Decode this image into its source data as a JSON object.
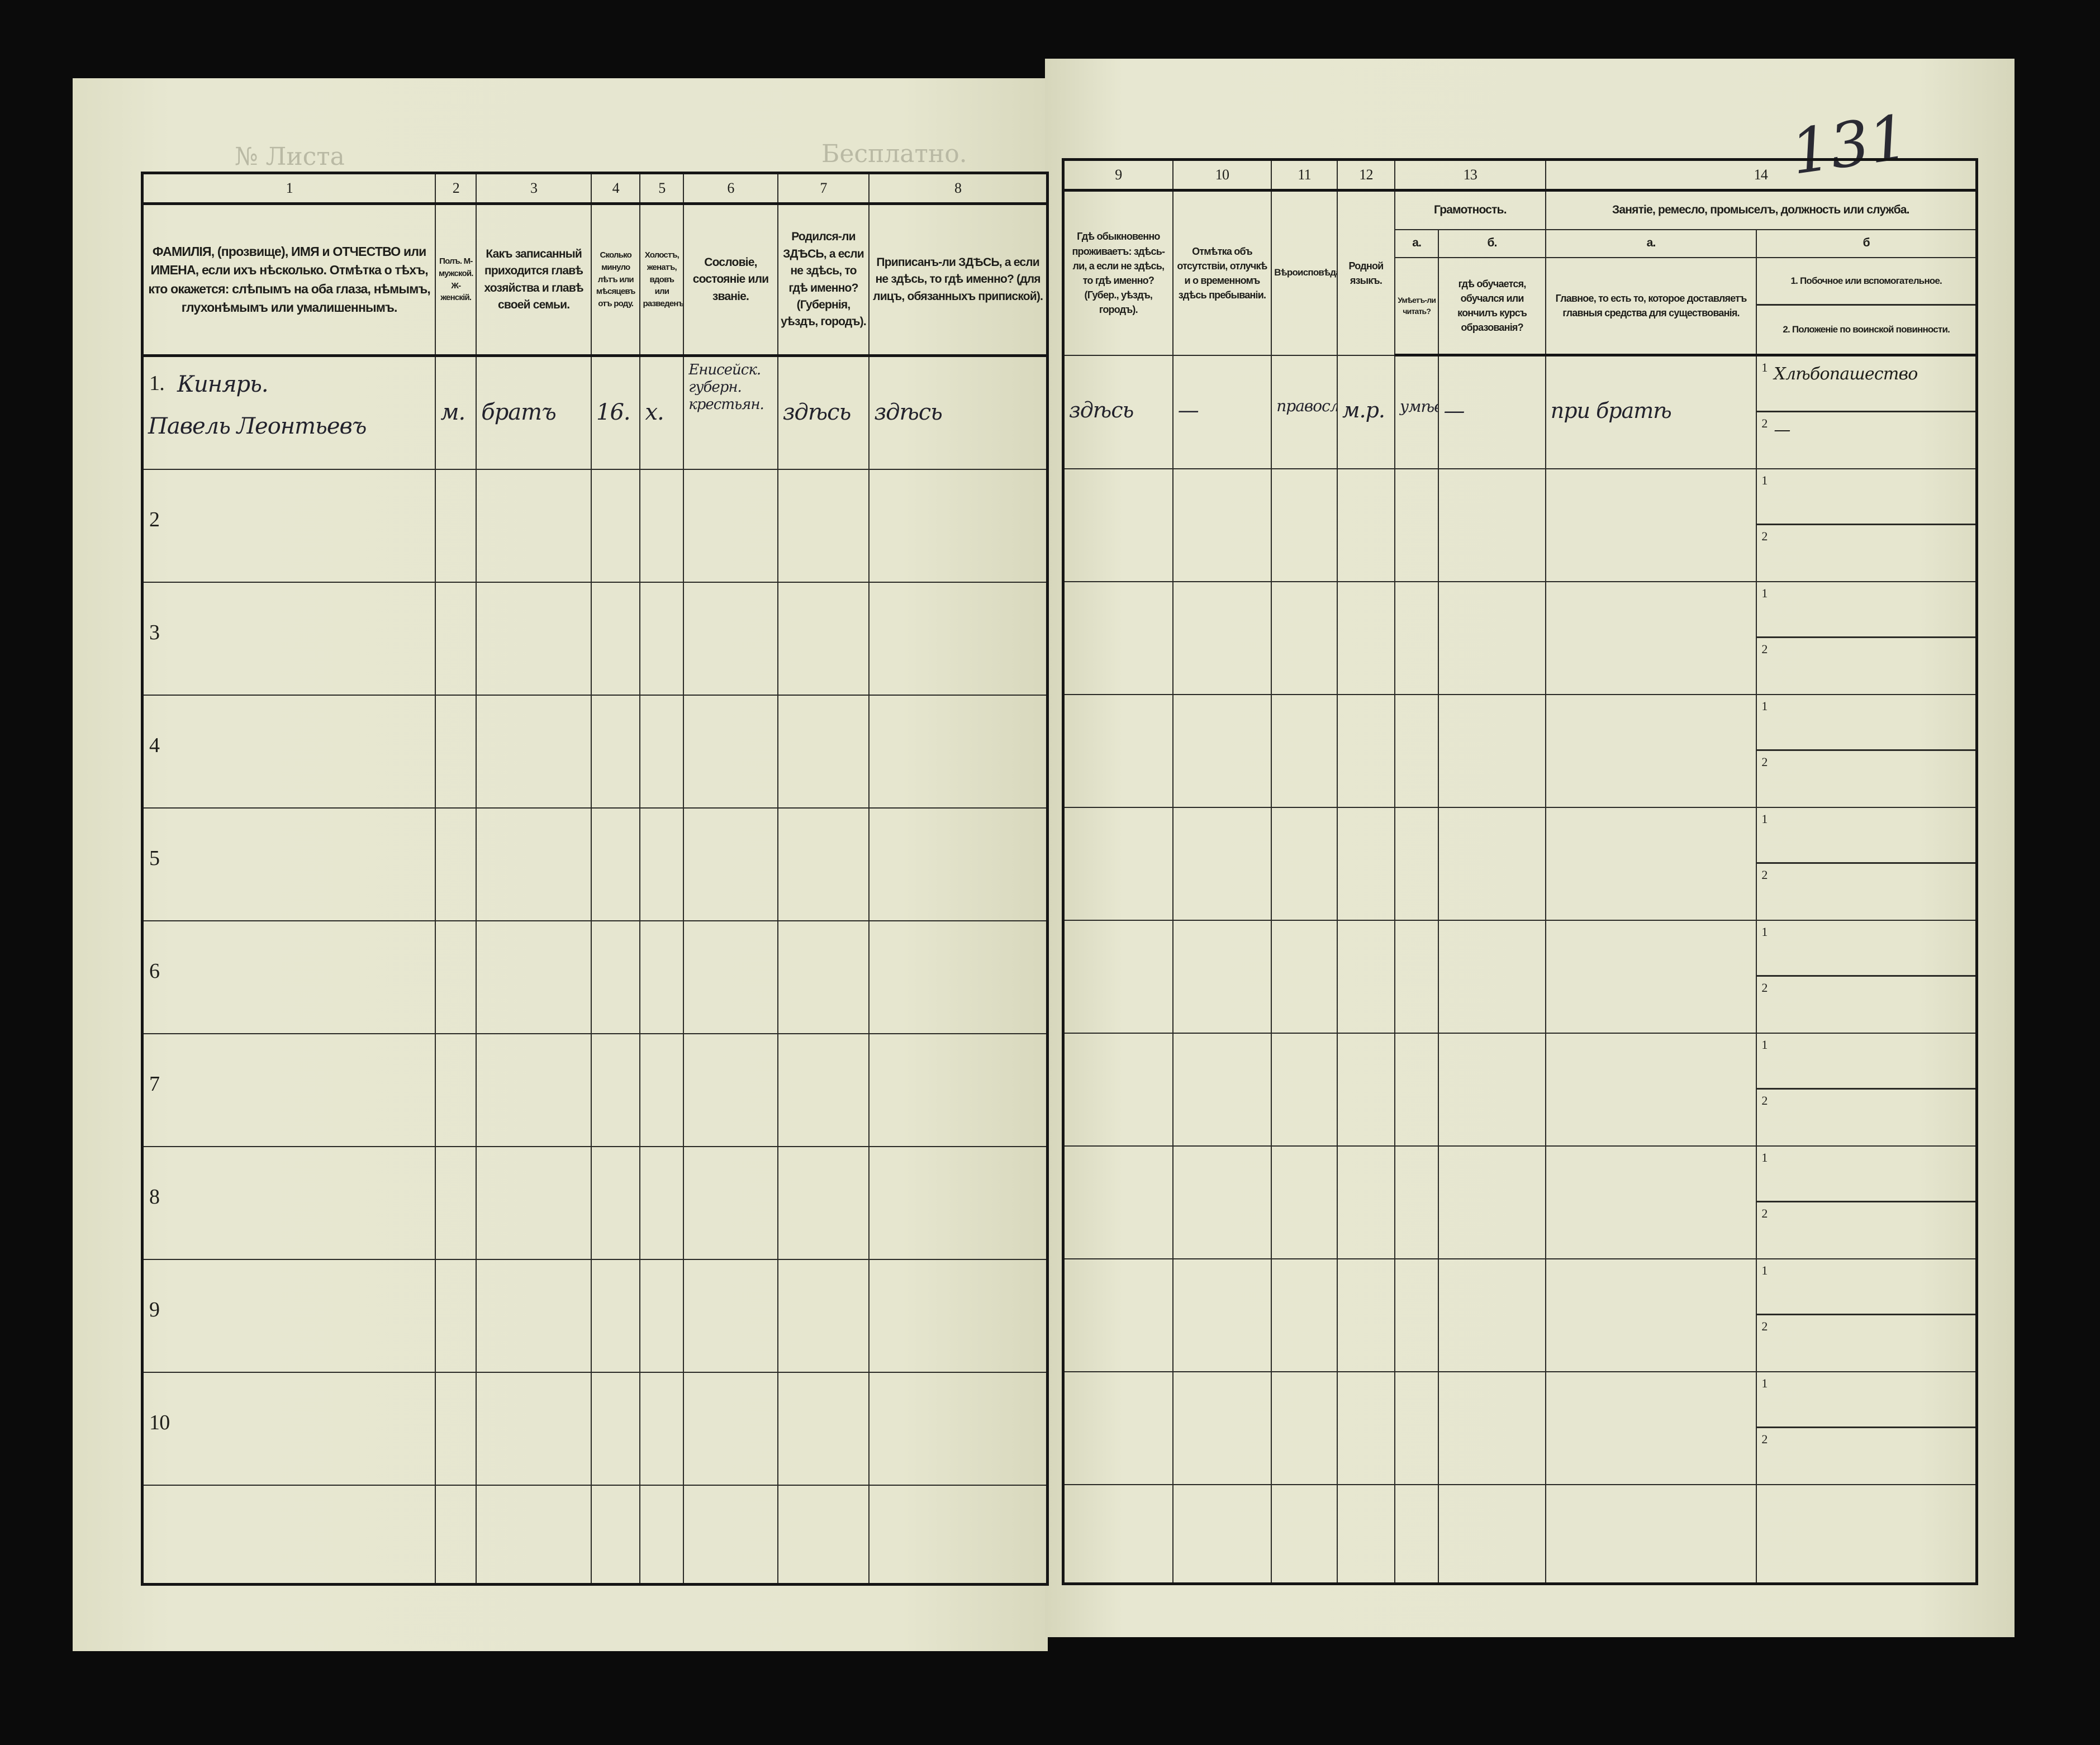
{
  "stamps": {
    "left_top": "Бесплатно.",
    "sheet_no": "№ Листа"
  },
  "page_number": "131",
  "left": {
    "column_numbers": [
      "1",
      "2",
      "3",
      "4",
      "5",
      "6",
      "7",
      "8"
    ],
    "headers": [
      "ФАМИЛІЯ, (прозвище), ИМЯ и ОТЧЕСТВО или ИМЕНА, если ихъ нѣсколько. Отмѣтка о тѣхъ, кто окажется: слѣпымъ на оба глаза, нѣмымъ, глухонѣмымъ или умалишеннымъ.",
      "Полъ. М-мужской. Ж-женскій.",
      "Какъ записанный приходится главѣ хозяйства и главѣ своей семьи.",
      "Сколько минуло лѣтъ или мѣсяцевъ отъ роду.",
      "Холостъ, женатъ, вдовъ или разведенъ.",
      "Сословіе, состояніе или званіе.",
      "Родился-ли ЗДѢСЬ, а если не здѣсь, то гдѣ именно? (Губернія, уѣздъ, городъ).",
      "Приписанъ-ли ЗДѢСЬ, а если не здѣсь, то гдѣ именно? (для лицъ, обязанныхъ припиской)."
    ],
    "row_numbers": [
      "1.",
      "2",
      "3",
      "4",
      "5",
      "6",
      "7",
      "8",
      "9",
      "10"
    ],
    "entry": {
      "surname": "Кинярь.",
      "given_names": "Павель Леонтьевъ",
      "sex": "м.",
      "relation": "братъ",
      "age": "16.",
      "marital": "х.",
      "estate": "Енисейск. губерн. крестьян.",
      "born": "здѣсь",
      "registered": "здѣсь"
    }
  },
  "right": {
    "column_numbers": [
      "9",
      "10",
      "11",
      "12",
      "13",
      "14"
    ],
    "headers": {
      "c9": "Гдѣ обыкновенно проживаетъ: здѣсь-ли, а если не здѣсь, то гдѣ именно? (Губер., уѣздъ, городъ).",
      "c10": "Отмѣтка объ отсутствіи, отлучкѣ и о временномъ здѣсь пребываніи.",
      "c11": "Вѣроисповѣданіе.",
      "c12": "Родной языкъ.",
      "c13": "Грамотность.",
      "c13a_letter": "а.",
      "c13b_letter": "б.",
      "c13a": "Умѣетъ-ли читать?",
      "c13b": "гдѣ обучается, обучался или кончилъ курсъ образованія?",
      "c14": "Занятіе, ремесло, промыселъ, должность или служба.",
      "c14a_letter": "а.",
      "c14b_letter": "б",
      "c14a": "Главное, то есть то, которое доставляетъ главныя средства для существованія.",
      "c14b_1": "1. Побочное или вспомогательное.",
      "c14b_2": "2. Положеніе по воинской повинности."
    },
    "sub_labels": [
      "1",
      "2"
    ],
    "entry": {
      "residence": "здѣсь",
      "absence": "—",
      "religion": "правосл.",
      "language": "м.р.",
      "can_read": "умѣетъ",
      "education": "—",
      "main_occupation": "при братѣ",
      "secondary": "Хлѣбопашество",
      "military": "—"
    }
  }
}
